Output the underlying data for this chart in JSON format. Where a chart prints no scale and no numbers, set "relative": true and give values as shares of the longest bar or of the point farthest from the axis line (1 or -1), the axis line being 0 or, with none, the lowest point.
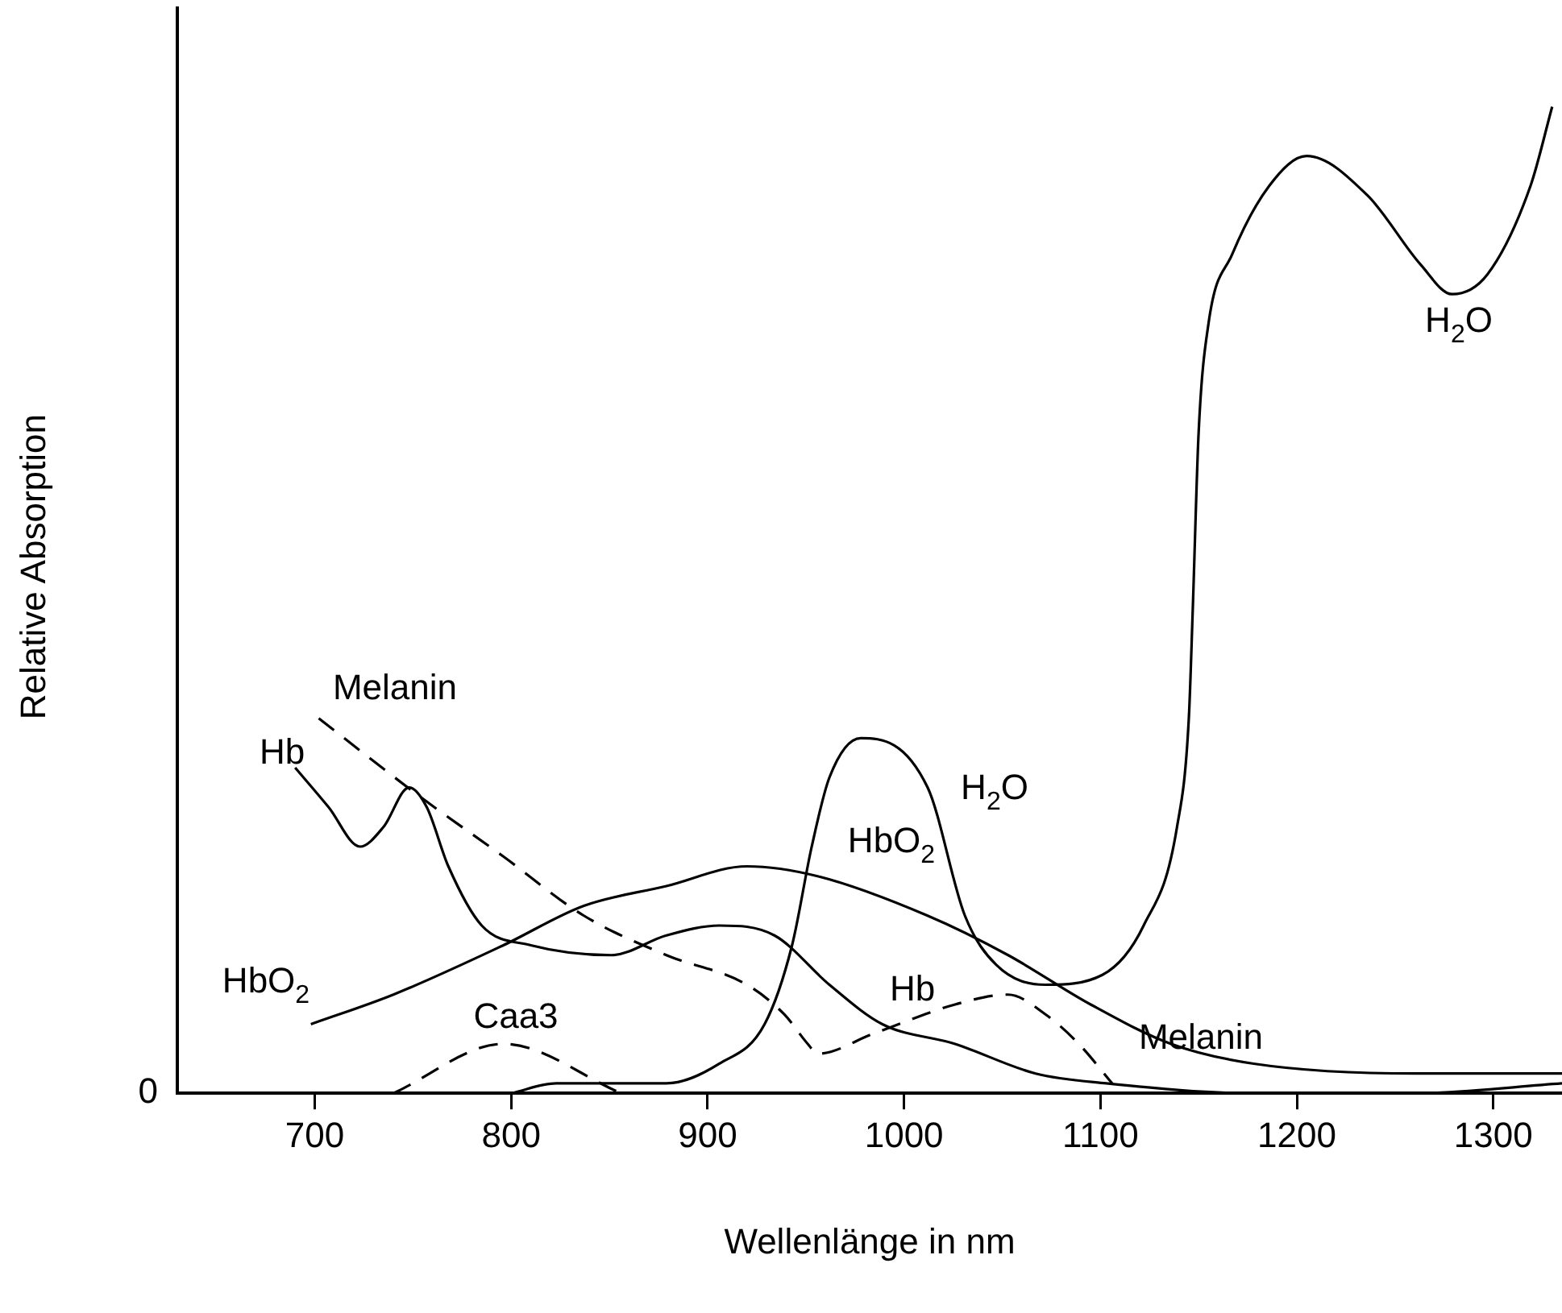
{
  "chart_data": {
    "type": "line",
    "relative": true,
    "xlabel": "Wellenlänge in nm",
    "ylabel": "Relative Absorption",
    "xlim": [
      630,
      1335
    ],
    "xticks": [
      700,
      800,
      900,
      1000,
      1100,
      1200,
      1300
    ],
    "grid": false,
    "legend": false,
    "marker": "none",
    "series": [
      {
        "name": "H$_{2}$O",
        "color": "#000000",
        "line_style": "solid",
        "x": [
          800,
          823,
          879,
          906,
          929,
          943,
          953,
          962,
          978,
          1012,
          1031,
          1047,
          1072,
          1101,
          1122,
          1139,
          1145,
          1147,
          1150,
          1155,
          1167,
          1186,
          1205,
          1236,
          1263,
          1279,
          1297,
          1319,
          1330
        ],
        "values": [
          0,
          0.01,
          0.01,
          0.03,
          0.07,
          0.15,
          0.25,
          0.32,
          0.36,
          0.31,
          0.18,
          0.13,
          0.11,
          0.12,
          0.17,
          0.27,
          0.38,
          0.49,
          0.67,
          0.78,
          0.85,
          0.92,
          0.95,
          0.91,
          0.84,
          0.81,
          0.83,
          0.92,
          1.0
        ]
      },
      {
        "name": "Hb",
        "color": "#000000",
        "line_style": "solid",
        "x": [
          690,
          707,
          723,
          735,
          748,
          757,
          768,
          785,
          810,
          851,
          879,
          906,
          934,
          962,
          989,
          1026,
          1067,
          1103,
          1178,
          1261,
          1335
        ],
        "values": [
          0.33,
          0.29,
          0.25,
          0.27,
          0.31,
          0.29,
          0.23,
          0.17,
          0.15,
          0.14,
          0.16,
          0.17,
          0.16,
          0.11,
          0.07,
          0.05,
          0.02,
          0.01,
          0,
          0,
          0.01
        ]
      },
      {
        "name": "HbO$_{2}$",
        "color": "#000000",
        "line_style": "solid",
        "x": [
          698,
          740,
          796,
          837,
          879,
          920,
          956,
          1012,
          1053,
          1095,
          1136,
          1178,
          1261,
          1335
        ],
        "values": [
          0.07,
          0.1,
          0.15,
          0.19,
          0.21,
          0.23,
          0.22,
          0.18,
          0.14,
          0.09,
          0.05,
          0.03,
          0.02,
          0.02
        ]
      },
      {
        "name": "Melanin",
        "color": "#000000",
        "line_style": "dashed",
        "x": [
          702,
          754,
          796,
          837,
          879,
          920,
          939,
          951,
          956,
          984,
          1026,
          1053,
          1072,
          1089,
          1106
        ],
        "values": [
          0.38,
          0.3,
          0.24,
          0.18,
          0.14,
          0.11,
          0.08,
          0.05,
          0.04,
          0.06,
          0.09,
          0.1,
          0.08,
          0.05,
          0.01
        ]
      },
      {
        "name": "Caa3",
        "color": "#000000",
        "line_style": "dashed",
        "x": [
          740,
          796,
          856
        ],
        "values": [
          0,
          0.05,
          0
        ]
      }
    ],
    "annotations": [
      "0"
    ]
  }
}
